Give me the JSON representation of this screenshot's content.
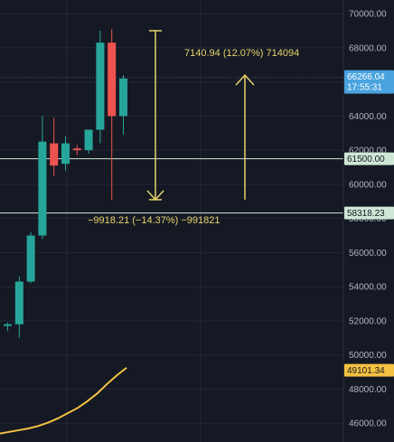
{
  "chart_data": {
    "type": "candlestick",
    "y_axis": {
      "ticks": [
        46000,
        48000,
        50000,
        52000,
        54000,
        56000,
        58000,
        60000,
        62000,
        64000,
        66000,
        68000,
        70000
      ],
      "tick_labels": [
        "46000.00",
        "48000.00",
        "50000.00",
        "52000.00",
        "54000.00",
        "56000.00",
        "58000.00",
        "60000.00",
        "62000.00",
        "64000.00",
        "66000.00",
        "68000.00",
        "70000.00"
      ],
      "ylim": [
        44900,
        70800
      ],
      "position": "right"
    },
    "candles": [
      {
        "open": 51700,
        "high": 51900,
        "low": 51400,
        "close": 51800
      },
      {
        "open": 51800,
        "high": 54600,
        "low": 51000,
        "close": 54300
      },
      {
        "open": 54300,
        "high": 57200,
        "low": 54200,
        "close": 57000
      },
      {
        "open": 57000,
        "high": 64000,
        "low": 56800,
        "close": 62500
      },
      {
        "open": 62400,
        "high": 63900,
        "low": 60500,
        "close": 61100
      },
      {
        "open": 61200,
        "high": 62800,
        "low": 60800,
        "close": 62400
      },
      {
        "open": 62100,
        "high": 62300,
        "low": 61700,
        "close": 62000
      },
      {
        "open": 62000,
        "high": 63200,
        "low": 61800,
        "close": 63200
      },
      {
        "open": 63200,
        "high": 69000,
        "low": 62400,
        "close": 68300
      },
      {
        "open": 68300,
        "high": 69100,
        "low": 59100,
        "close": 64000
      },
      {
        "open": 64000,
        "high": 66400,
        "low": 62900,
        "close": 66200
      }
    ],
    "moving_average": {
      "color": "#f5c242",
      "values": [
        45400,
        45500,
        45600,
        45700,
        45850,
        46050,
        46300,
        46600,
        46900,
        47300,
        47750,
        48300,
        48800,
        49250
      ]
    },
    "horizontal_lines": [
      {
        "value": 61500,
        "label": "61500.00",
        "color": "#cfe8d6"
      },
      {
        "value": 58318.23,
        "label": "58318.23",
        "color": "#cfe8d6"
      }
    ],
    "price_tags": [
      {
        "value": 66266.04,
        "label": "66266.04",
        "sublabel": "17:55:31",
        "color": "#4aa3df"
      },
      {
        "value": 61500,
        "label": "61500.00",
        "color": "#cfe8d6"
      },
      {
        "value": 58318.23,
        "label": "58318.23",
        "color": "#cfe8d6"
      },
      {
        "value": 49101.34,
        "label": "49101.34",
        "color": "#f5c242"
      }
    ],
    "measurements": [
      {
        "text": "7140.94 (12.07%) 714094",
        "from": 59100,
        "to": 66400,
        "direction": "up"
      },
      {
        "text": "−9918.21 (−14.37%) −991821",
        "from": 69000,
        "to": 59100,
        "direction": "down"
      }
    ],
    "colors": {
      "up": "#26a69a",
      "down": "#ef5350",
      "grid": "#242937",
      "annotation": "#e6d36a",
      "background": "#151924"
    },
    "grid": true
  }
}
